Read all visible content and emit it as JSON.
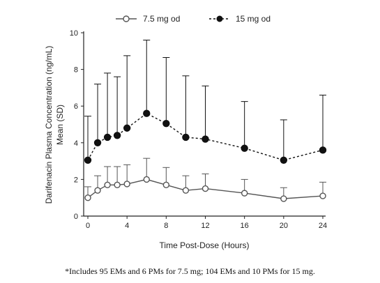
{
  "chart_data": {
    "type": "line",
    "xlabel": "Time Post-Dose (Hours)",
    "ylabel": [
      "Darifenacin Plasma Concentration (ng/mL)",
      "Mean (SD)"
    ],
    "xlim": [
      0,
      24
    ],
    "ylim": [
      0,
      10
    ],
    "xticks": [
      0,
      4,
      8,
      12,
      16,
      20,
      24
    ],
    "yticks": [
      0,
      2,
      4,
      6,
      8,
      10
    ],
    "grid": false,
    "legend_position": "top",
    "x": [
      0,
      1,
      2,
      3,
      4,
      6,
      8,
      10,
      12,
      16,
      20,
      24
    ],
    "series": [
      {
        "name": "7.5 mg od",
        "marker": "open-circle",
        "line": "solid",
        "color": "#555555",
        "values": [
          1.0,
          1.4,
          1.7,
          1.7,
          1.75,
          2.0,
          1.7,
          1.4,
          1.5,
          1.25,
          0.95,
          1.1
        ],
        "sd": [
          0.6,
          0.8,
          1.0,
          1.0,
          1.05,
          1.15,
          0.95,
          0.8,
          0.8,
          0.75,
          0.6,
          0.75
        ]
      },
      {
        "name": "15 mg od",
        "marker": "filled-circle",
        "line": "dashed",
        "color": "#111111",
        "values": [
          3.05,
          4.0,
          4.3,
          4.4,
          4.8,
          5.6,
          5.05,
          4.3,
          4.2,
          3.7,
          3.05,
          3.6
        ],
        "sd": [
          2.4,
          3.2,
          3.5,
          3.2,
          3.95,
          4.0,
          3.6,
          3.35,
          2.9,
          2.55,
          2.2,
          3.0
        ]
      }
    ]
  },
  "footnote": "*Includes 95 EMs and 6 PMs for 7.5 mg; 104 EMs and 10 PMs for 15 mg."
}
